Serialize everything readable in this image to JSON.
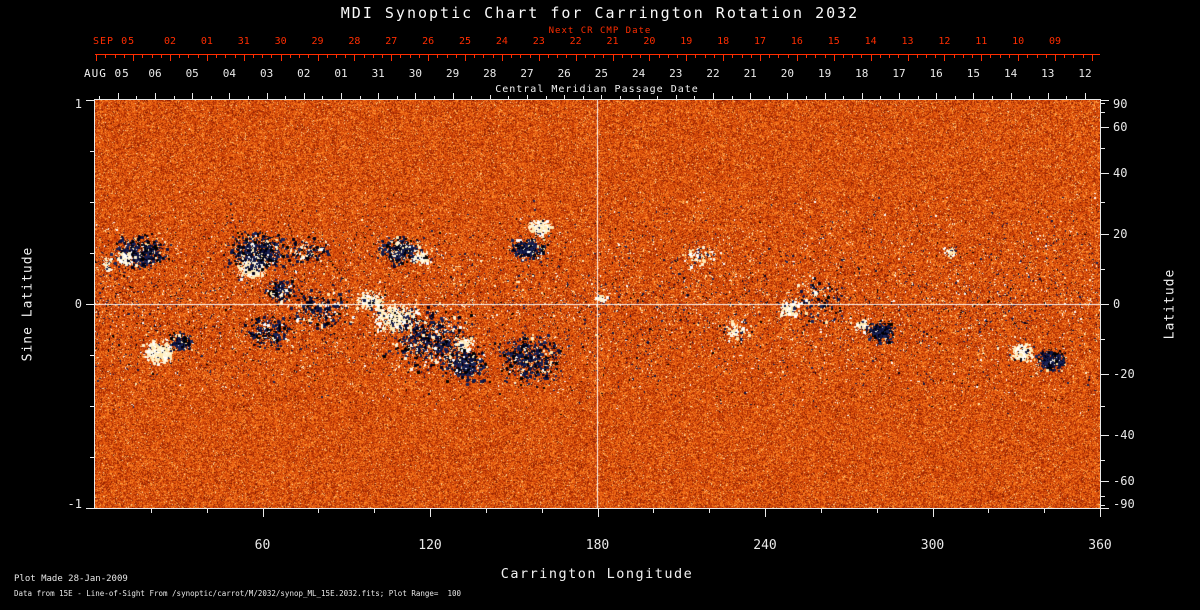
{
  "title": "MDI Synoptic Chart for Carrington Rotation 2032",
  "top_axis": {
    "label": "Next CR CMP Date",
    "month": "SEP 05",
    "color": "#ff2d00",
    "days": [
      "02",
      "01",
      "31",
      "30",
      "29",
      "28",
      "27",
      "26",
      "25",
      "24",
      "23",
      "22",
      "21",
      "20",
      "19",
      "18",
      "17",
      "16",
      "15",
      "14",
      "13",
      "12",
      "11",
      "10",
      "09"
    ]
  },
  "cmp_axis": {
    "label": "Central Meridian Passage Date",
    "month": "AUG 05",
    "days": [
      "06",
      "05",
      "04",
      "03",
      "02",
      "01",
      "31",
      "30",
      "29",
      "28",
      "27",
      "26",
      "25",
      "24",
      "23",
      "22",
      "21",
      "20",
      "19",
      "18",
      "17",
      "16",
      "15",
      "14",
      "13",
      "12"
    ]
  },
  "chart_data": {
    "type": "heatmap",
    "title": "MDI Synoptic Chart for Carrington Rotation 2032",
    "xlabel": "Carrington Longitude",
    "ylabel_left": "Sine Latitude",
    "ylabel_right": "Latitude",
    "xlim": [
      0,
      360
    ],
    "x_major_ticks": [
      60,
      120,
      180,
      240,
      300,
      360
    ],
    "x_minor_step": 20,
    "sine_latitude_ticks": [
      1,
      0,
      -1
    ],
    "latitude_ticks": [
      90,
      60,
      40,
      20,
      0,
      -20,
      -40,
      -60,
      -90
    ],
    "latitude_minor_step": 10,
    "crosshair": {
      "longitude": 180,
      "latitude": 0
    },
    "plot_range": 100,
    "seed": 2032,
    "palette": {
      "stops": [
        [
          0.0,
          "#5a0e00"
        ],
        [
          0.25,
          "#9e2402"
        ],
        [
          0.45,
          "#d24708"
        ],
        [
          0.6,
          "#ee6412"
        ],
        [
          0.75,
          "#ff8828"
        ],
        [
          0.9,
          "#ffb85e"
        ],
        [
          1.0,
          "#ffe8b4"
        ]
      ],
      "dark_speck_colors": [
        "#000018",
        "#0c1240",
        "#1a2458",
        "#000000",
        "#141c4c"
      ],
      "white_speck_colors": [
        "#ffffff",
        "#fff4d2",
        "#ffe9b0"
      ]
    },
    "band_speckle": {
      "y_center": 0.5,
      "half_width": 0.28,
      "count": 6000,
      "dark_frac": 0.55
    },
    "active_regions": [
      {
        "x": 0.045,
        "y": 0.373,
        "rx": 22,
        "ry": 14,
        "n": 700,
        "wf": 0.1
      },
      {
        "x": 0.03,
        "y": 0.39,
        "rx": 7,
        "ry": 5,
        "n": 120,
        "wf": 0.9
      },
      {
        "x": 0.012,
        "y": 0.4,
        "rx": 6,
        "ry": 8,
        "n": 60,
        "wf": 0.6
      },
      {
        "x": 0.156,
        "y": 0.41,
        "rx": 12,
        "ry": 10,
        "n": 550,
        "wf": 0.95
      },
      {
        "x": 0.162,
        "y": 0.373,
        "rx": 26,
        "ry": 16,
        "n": 900,
        "wf": 0.15
      },
      {
        "x": 0.184,
        "y": 0.466,
        "rx": 14,
        "ry": 10,
        "n": 260,
        "wf": 0.2
      },
      {
        "x": 0.21,
        "y": 0.37,
        "rx": 20,
        "ry": 12,
        "n": 200,
        "wf": 0.3
      },
      {
        "x": 0.224,
        "y": 0.515,
        "rx": 28,
        "ry": 18,
        "n": 350,
        "wf": 0.25
      },
      {
        "x": 0.303,
        "y": 0.368,
        "rx": 18,
        "ry": 12,
        "n": 500,
        "wf": 0.2
      },
      {
        "x": 0.325,
        "y": 0.387,
        "rx": 8,
        "ry": 6,
        "n": 160,
        "wf": 0.9
      },
      {
        "x": 0.443,
        "y": 0.314,
        "rx": 10,
        "ry": 7,
        "n": 240,
        "wf": 0.9
      },
      {
        "x": 0.431,
        "y": 0.363,
        "rx": 16,
        "ry": 10,
        "n": 460,
        "wf": 0.12
      },
      {
        "x": 0.063,
        "y": 0.618,
        "rx": 13,
        "ry": 10,
        "n": 480,
        "wf": 0.92
      },
      {
        "x": 0.085,
        "y": 0.593,
        "rx": 10,
        "ry": 8,
        "n": 220,
        "wf": 0.15
      },
      {
        "x": 0.172,
        "y": 0.569,
        "rx": 20,
        "ry": 14,
        "n": 320,
        "wf": 0.2
      },
      {
        "x": 0.299,
        "y": 0.534,
        "rx": 20,
        "ry": 12,
        "n": 700,
        "wf": 0.85
      },
      {
        "x": 0.274,
        "y": 0.49,
        "rx": 12,
        "ry": 8,
        "n": 260,
        "wf": 0.8
      },
      {
        "x": 0.333,
        "y": 0.588,
        "rx": 35,
        "ry": 25,
        "n": 900,
        "wf": 0.2
      },
      {
        "x": 0.368,
        "y": 0.649,
        "rx": 20,
        "ry": 14,
        "n": 520,
        "wf": 0.1
      },
      {
        "x": 0.368,
        "y": 0.6,
        "rx": 8,
        "ry": 6,
        "n": 160,
        "wf": 0.85
      },
      {
        "x": 0.433,
        "y": 0.637,
        "rx": 28,
        "ry": 22,
        "n": 700,
        "wf": 0.15
      },
      {
        "x": 0.503,
        "y": 0.485,
        "rx": 5,
        "ry": 4,
        "n": 70,
        "wf": 0.9
      },
      {
        "x": 0.602,
        "y": 0.38,
        "rx": 18,
        "ry": 12,
        "n": 130,
        "wf": 0.8
      },
      {
        "x": 0.637,
        "y": 0.564,
        "rx": 14,
        "ry": 10,
        "n": 110,
        "wf": 0.75
      },
      {
        "x": 0.691,
        "y": 0.51,
        "rx": 10,
        "ry": 8,
        "n": 190,
        "wf": 0.85
      },
      {
        "x": 0.72,
        "y": 0.49,
        "rx": 25,
        "ry": 20,
        "n": 160,
        "wf": 0.3
      },
      {
        "x": 0.781,
        "y": 0.569,
        "rx": 12,
        "ry": 9,
        "n": 420,
        "wf": 0.08
      },
      {
        "x": 0.763,
        "y": 0.554,
        "rx": 6,
        "ry": 5,
        "n": 90,
        "wf": 0.85
      },
      {
        "x": 0.851,
        "y": 0.373,
        "rx": 6,
        "ry": 5,
        "n": 60,
        "wf": 0.8
      },
      {
        "x": 0.922,
        "y": 0.618,
        "rx": 10,
        "ry": 8,
        "n": 320,
        "wf": 0.9
      },
      {
        "x": 0.952,
        "y": 0.637,
        "rx": 12,
        "ry": 9,
        "n": 420,
        "wf": 0.08
      }
    ]
  },
  "footer": {
    "line1": "Plot Made 28-Jan-2009",
    "line2": "Data from 15E - Line-of-Sight From /synoptic/carrot/M/2032/synop_ML_15E.2032.fits; Plot Range=  100"
  }
}
